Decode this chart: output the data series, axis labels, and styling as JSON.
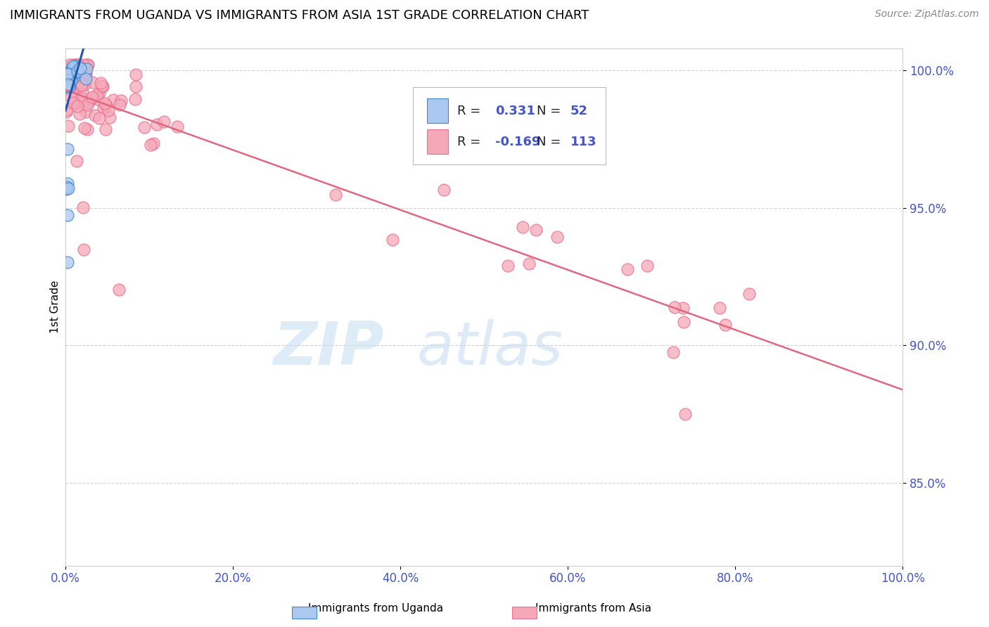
{
  "title": "IMMIGRANTS FROM UGANDA VS IMMIGRANTS FROM ASIA 1ST GRADE CORRELATION CHART",
  "source": "Source: ZipAtlas.com",
  "ylabel": "1st Grade",
  "xlim": [
    0.0,
    1.0
  ],
  "ylim": [
    0.82,
    1.008
  ],
  "yticks": [
    0.85,
    0.9,
    0.95,
    1.0
  ],
  "ytick_labels": [
    "85.0%",
    "90.0%",
    "95.0%",
    "100.0%"
  ],
  "xticks": [
    0.0,
    0.2,
    0.4,
    0.6,
    0.8,
    1.0
  ],
  "xtick_labels": [
    "0.0%",
    "20.0%",
    "40.0%",
    "60.0%",
    "80.0%",
    "100.0%"
  ],
  "color_uganda": "#aac8f0",
  "color_asia": "#f5a8b8",
  "edge_color_uganda": "#4488cc",
  "edge_color_asia": "#e87090",
  "line_color_uganda": "#2255aa",
  "line_color_asia": "#e06880",
  "bg_color": "#ffffff",
  "grid_color": "#cccccc",
  "tick_color": "#4455cc",
  "watermark_color_zip": "#c8e0f4",
  "watermark_color_atlas": "#c8ddf0"
}
